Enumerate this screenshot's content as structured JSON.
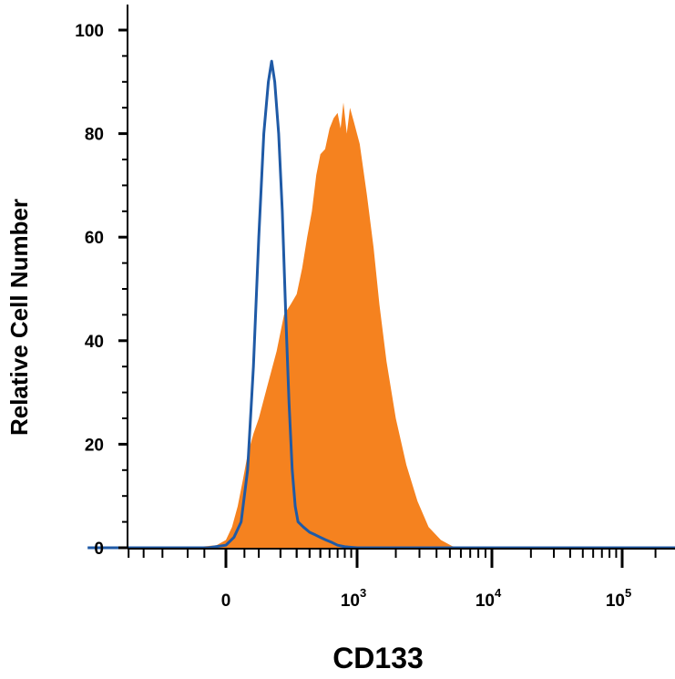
{
  "chart_data": {
    "type": "area",
    "xlabel": "CD133",
    "ylabel": "Relative Cell Number",
    "x_scale": "biexponential",
    "ylim": [
      0,
      100
    ],
    "y_ticks": [
      "0",
      "20",
      "40",
      "60",
      "80",
      "100"
    ],
    "x_ticks": [
      {
        "base": "0",
        "exp": "",
        "value": 0
      },
      {
        "base": "10",
        "exp": "3",
        "value": 1000
      },
      {
        "base": "10",
        "exp": "4",
        "value": 10000
      },
      {
        "base": "10",
        "exp": "5",
        "value": 100000
      }
    ],
    "grid": false,
    "series": [
      {
        "kind": "filled",
        "color": "#F5821F",
        "points": [
          [
            -100,
            0
          ],
          [
            -20,
            0.5
          ],
          [
            0,
            1.5
          ],
          [
            15,
            4
          ],
          [
            30,
            8
          ],
          [
            45,
            13
          ],
          [
            60,
            18
          ],
          [
            80,
            22
          ],
          [
            100,
            25
          ],
          [
            140,
            32
          ],
          [
            180,
            38
          ],
          [
            220,
            45
          ],
          [
            260,
            47
          ],
          [
            300,
            49
          ],
          [
            340,
            54
          ],
          [
            380,
            60
          ],
          [
            420,
            65
          ],
          [
            460,
            72
          ],
          [
            500,
            76
          ],
          [
            550,
            77
          ],
          [
            600,
            81
          ],
          [
            650,
            83
          ],
          [
            700,
            84
          ],
          [
            740,
            81
          ],
          [
            780,
            86
          ],
          [
            830,
            80
          ],
          [
            880,
            85
          ],
          [
            950,
            82
          ],
          [
            1050,
            78
          ],
          [
            1200,
            68
          ],
          [
            1350,
            58
          ],
          [
            1500,
            47
          ],
          [
            1700,
            36
          ],
          [
            2000,
            25
          ],
          [
            2400,
            16
          ],
          [
            2900,
            9
          ],
          [
            3500,
            4
          ],
          [
            4300,
            1.5
          ],
          [
            5200,
            0.3
          ],
          [
            6000,
            0
          ]
        ]
      },
      {
        "kind": "outline",
        "color": "#1F5AA6",
        "points": [
          [
            -800,
            0
          ],
          [
            -40,
            0
          ],
          [
            0,
            0.5
          ],
          [
            20,
            2
          ],
          [
            40,
            5
          ],
          [
            60,
            15
          ],
          [
            80,
            35
          ],
          [
            100,
            60
          ],
          [
            120,
            80
          ],
          [
            140,
            90
          ],
          [
            155,
            94
          ],
          [
            170,
            90
          ],
          [
            190,
            80
          ],
          [
            210,
            65
          ],
          [
            230,
            45
          ],
          [
            250,
            28
          ],
          [
            270,
            15
          ],
          [
            290,
            8
          ],
          [
            310,
            5
          ],
          [
            350,
            4
          ],
          [
            400,
            3
          ],
          [
            450,
            2.5
          ],
          [
            500,
            2
          ],
          [
            560,
            1.5
          ],
          [
            630,
            1
          ],
          [
            700,
            0.5
          ],
          [
            800,
            0.2
          ],
          [
            1000,
            0
          ],
          [
            300000,
            0
          ]
        ]
      }
    ]
  }
}
